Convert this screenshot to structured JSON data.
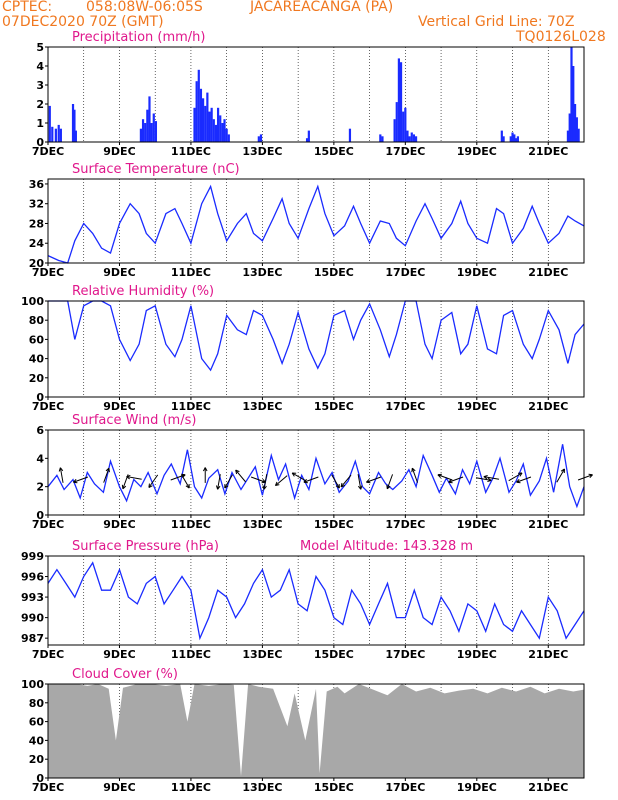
{
  "header": {
    "org": "CPTEC:",
    "coords": "058:08W-06:05S",
    "station": "JACAREACANGA (PA)",
    "run": "07DEC2020 70Z (GMT)",
    "grid": "Vertical Grid Line: 70Z",
    "code": "TQ0126L028"
  },
  "colors": {
    "header": "#f07820",
    "title": "#e0188c",
    "series": "#1a2bff",
    "cloud_fill": "#a8a8a8"
  },
  "chart_data": [
    {
      "type": "bar",
      "title": "Precipitation (mm/h)",
      "xticks": [
        "7DEC",
        "9DEC",
        "11DEC",
        "13DEC",
        "15DEC",
        "17DEC",
        "19DEC",
        "21DEC"
      ],
      "xrange": [
        0,
        15
      ],
      "ylim": [
        0,
        5
      ],
      "yticks": [
        0,
        1,
        2,
        3,
        4,
        5
      ],
      "x": [
        0.05,
        0.12,
        0.22,
        0.3,
        0.36,
        0.7,
        0.74,
        0.78,
        2.6,
        2.66,
        2.72,
        2.78,
        2.84,
        2.9,
        2.96,
        3.02,
        4.1,
        4.16,
        4.22,
        4.28,
        4.34,
        4.4,
        4.46,
        4.52,
        4.58,
        4.64,
        4.7,
        4.76,
        4.82,
        4.88,
        4.94,
        5.0,
        5.06,
        5.9,
        5.96,
        7.25,
        7.3,
        8.45,
        9.3,
        9.36,
        9.7,
        9.76,
        9.82,
        9.88,
        9.94,
        10.0,
        10.06,
        10.12,
        10.18,
        10.24,
        10.3,
        12.7,
        12.75,
        12.95,
        13.0,
        13.05,
        13.1,
        13.15,
        14.55,
        14.6,
        14.65,
        14.7,
        14.75,
        14.8,
        14.85
      ],
      "values": [
        1.9,
        0.8,
        0.7,
        0.9,
        0.7,
        2.0,
        1.7,
        0.6,
        0.7,
        1.2,
        1.0,
        1.7,
        2.4,
        1.0,
        1.5,
        1.1,
        1.8,
        3.2,
        3.8,
        2.8,
        2.3,
        1.9,
        2.6,
        1.6,
        1.8,
        1.2,
        0.9,
        1.8,
        1.4,
        1.0,
        1.2,
        0.7,
        0.4,
        0.3,
        0.4,
        0.2,
        0.6,
        0.7,
        0.4,
        0.3,
        1.2,
        2.1,
        4.4,
        4.2,
        1.6,
        1.8,
        0.6,
        0.3,
        0.5,
        0.4,
        0.3,
        0.6,
        0.3,
        0.3,
        0.5,
        0.4,
        0.2,
        0.3,
        0.6,
        1.5,
        5.0,
        4.0,
        2.0,
        1.3,
        0.7
      ]
    },
    {
      "type": "line",
      "title": "Surface Temperature (nC)",
      "xticks": [
        "7DEC",
        "9DEC",
        "11DEC",
        "13DEC",
        "15DEC",
        "17DEC",
        "19DEC",
        "21DEC"
      ],
      "xrange": [
        0,
        15
      ],
      "ylim": [
        20,
        37
      ],
      "yticks": [
        20,
        24,
        28,
        32,
        36
      ],
      "x": [
        0,
        0.3,
        0.55,
        0.75,
        1.0,
        1.25,
        1.5,
        1.75,
        2.0,
        2.3,
        2.55,
        2.75,
        3.0,
        3.3,
        3.55,
        3.75,
        4.0,
        4.3,
        4.55,
        4.75,
        5.0,
        5.3,
        5.55,
        5.75,
        6.0,
        6.3,
        6.55,
        6.75,
        7.0,
        7.3,
        7.55,
        7.75,
        8.0,
        8.3,
        8.55,
        8.75,
        9.0,
        9.3,
        9.55,
        9.75,
        10.0,
        10.3,
        10.55,
        10.75,
        11.0,
        11.3,
        11.55,
        11.75,
        12.0,
        12.3,
        12.55,
        12.75,
        13.0,
        13.3,
        13.55,
        13.75,
        14.0,
        14.3,
        14.55,
        14.75,
        15.0
      ],
      "values": [
        21.5,
        20.5,
        20.0,
        24.5,
        28.0,
        26.0,
        23.0,
        22.0,
        28.0,
        32.0,
        30.0,
        26.0,
        24.0,
        30.0,
        31.0,
        28.0,
        24.0,
        32.0,
        35.5,
        30.0,
        24.5,
        28.0,
        30.0,
        26.0,
        24.5,
        29.0,
        33.0,
        28.0,
        25.0,
        31.0,
        35.5,
        30.0,
        25.5,
        27.5,
        31.5,
        28.0,
        24.0,
        28.5,
        28.0,
        25.0,
        23.5,
        28.5,
        32.0,
        29.0,
        25.0,
        28.0,
        32.5,
        28.0,
        25.0,
        24.0,
        31.0,
        30.0,
        24.0,
        27.0,
        31.5,
        28.0,
        24.0,
        26.0,
        29.5,
        28.5,
        27.5
      ]
    },
    {
      "type": "line",
      "title": "Relative Humidity (%)",
      "xticks": [
        "7DEC",
        "9DEC",
        "11DEC",
        "13DEC",
        "15DEC",
        "17DEC",
        "19DEC",
        "21DEC"
      ],
      "xrange": [
        0,
        15
      ],
      "ylim": [
        0,
        100
      ],
      "yticks": [
        0,
        20,
        40,
        60,
        80,
        100
      ],
      "x": [
        0,
        0.3,
        0.55,
        0.75,
        1.0,
        1.25,
        1.5,
        1.75,
        2.0,
        2.3,
        2.55,
        2.75,
        3.0,
        3.3,
        3.55,
        3.75,
        4.0,
        4.3,
        4.55,
        4.75,
        5.0,
        5.3,
        5.55,
        5.75,
        6.0,
        6.3,
        6.55,
        6.75,
        7.0,
        7.3,
        7.55,
        7.75,
        8.0,
        8.3,
        8.55,
        8.75,
        9.0,
        9.3,
        9.55,
        9.75,
        10.0,
        10.3,
        10.55,
        10.75,
        11.0,
        11.3,
        11.55,
        11.75,
        12.0,
        12.3,
        12.55,
        12.75,
        13.0,
        13.3,
        13.55,
        13.75,
        14.0,
        14.3,
        14.55,
        14.75,
        15.0
      ],
      "values": [
        100,
        100,
        100,
        60,
        95,
        100,
        100,
        95,
        60,
        38,
        55,
        90,
        95,
        55,
        42,
        60,
        95,
        40,
        28,
        45,
        85,
        70,
        65,
        90,
        85,
        60,
        35,
        55,
        88,
        50,
        30,
        45,
        85,
        90,
        60,
        80,
        97,
        70,
        42,
        65,
        100,
        100,
        55,
        40,
        80,
        88,
        45,
        55,
        95,
        50,
        45,
        85,
        90,
        55,
        40,
        60,
        90,
        70,
        35,
        65,
        76
      ]
    },
    {
      "type": "line",
      "title": "Surface Wind (m/s)",
      "xticks": [
        "7DEC",
        "9DEC",
        "11DEC",
        "13DEC",
        "15DEC",
        "17DEC",
        "19DEC",
        "21DEC"
      ],
      "xrange": [
        0,
        15
      ],
      "ylim": [
        0,
        6
      ],
      "yticks": [
        0,
        2,
        4,
        6
      ],
      "x": [
        0,
        0.25,
        0.45,
        0.7,
        0.9,
        1.1,
        1.3,
        1.55,
        1.75,
        2.0,
        2.2,
        2.4,
        2.6,
        2.8,
        3.05,
        3.25,
        3.45,
        3.7,
        3.9,
        4.1,
        4.3,
        4.5,
        4.75,
        4.95,
        5.15,
        5.4,
        5.6,
        5.8,
        6.0,
        6.25,
        6.45,
        6.65,
        6.9,
        7.1,
        7.3,
        7.5,
        7.75,
        7.95,
        8.15,
        8.4,
        8.6,
        8.8,
        9.0,
        9.25,
        9.45,
        9.65,
        9.9,
        10.1,
        10.3,
        10.5,
        10.75,
        10.95,
        11.15,
        11.4,
        11.6,
        11.8,
        12.0,
        12.25,
        12.45,
        12.65,
        12.9,
        13.1,
        13.3,
        13.5,
        13.75,
        13.95,
        14.15,
        14.4,
        14.6,
        14.8,
        15.0
      ],
      "values": [
        2.0,
        2.8,
        1.8,
        2.5,
        1.2,
        3.0,
        2.2,
        1.6,
        3.8,
        2.0,
        1.0,
        2.5,
        2.0,
        3.0,
        1.5,
        2.8,
        3.6,
        2.2,
        4.6,
        2.0,
        1.2,
        2.6,
        3.2,
        1.5,
        3.0,
        1.8,
        2.6,
        3.4,
        1.4,
        4.2,
        2.5,
        3.6,
        1.2,
        2.8,
        1.8,
        4.0,
        2.2,
        3.0,
        1.6,
        2.4,
        3.8,
        2.0,
        1.5,
        3.0,
        2.2,
        1.8,
        2.4,
        3.2,
        2.0,
        4.2,
        2.8,
        1.6,
        2.6,
        1.5,
        3.2,
        2.2,
        3.8,
        1.6,
        2.6,
        4.0,
        1.6,
        2.4,
        3.6,
        1.4,
        2.4,
        4.0,
        1.6,
        5.0,
        2.0,
        0.6,
        2.0
      ],
      "arrows": [
        {
          "x": 0.4,
          "dir": 100
        },
        {
          "x": 1.0,
          "dir": 200
        },
        {
          "x": 1.6,
          "dir": 70
        },
        {
          "x": 2.2,
          "dir": 250
        },
        {
          "x": 2.5,
          "dir": 170
        },
        {
          "x": 3.0,
          "dir": 235
        },
        {
          "x": 3.55,
          "dir": 20
        },
        {
          "x": 3.8,
          "dir": 300
        },
        {
          "x": 4.4,
          "dir": 90
        },
        {
          "x": 4.8,
          "dir": 260
        },
        {
          "x": 5.1,
          "dir": 240
        },
        {
          "x": 5.45,
          "dir": 130
        },
        {
          "x": 5.8,
          "dir": 340
        },
        {
          "x": 6.1,
          "dir": 260
        },
        {
          "x": 6.6,
          "dir": 220
        },
        {
          "x": 7.1,
          "dir": 150
        },
        {
          "x": 7.45,
          "dir": 200
        },
        {
          "x": 8.0,
          "dir": 300
        },
        {
          "x": 8.4,
          "dir": 230
        },
        {
          "x": 8.7,
          "dir": 280
        },
        {
          "x": 9.2,
          "dir": 200
        },
        {
          "x": 9.6,
          "dir": 250
        },
        {
          "x": 10.3,
          "dir": 110
        },
        {
          "x": 11.2,
          "dir": 160
        },
        {
          "x": 11.5,
          "dir": 200
        },
        {
          "x": 12.1,
          "dir": 350
        },
        {
          "x": 12.5,
          "dir": 170
        },
        {
          "x": 13.0,
          "dir": 30
        },
        {
          "x": 13.4,
          "dir": 200
        },
        {
          "x": 14.3,
          "dir": 60
        },
        {
          "x": 14.95,
          "dir": 20
        }
      ]
    },
    {
      "type": "line",
      "title": "Surface Pressure (hPa)",
      "annotation": "Model Altitude: 143.328 m",
      "xticks": [
        "7DEC",
        "9DEC",
        "11DEC",
        "13DEC",
        "15DEC",
        "17DEC",
        "19DEC",
        "21DEC"
      ],
      "xrange": [
        0,
        15
      ],
      "ylim": [
        986,
        999
      ],
      "yticks": [
        987,
        990,
        993,
        996,
        999
      ],
      "x": [
        0,
        0.25,
        0.5,
        0.75,
        1.0,
        1.25,
        1.5,
        1.75,
        2.0,
        2.25,
        2.5,
        2.75,
        3.0,
        3.25,
        3.5,
        3.75,
        4.0,
        4.25,
        4.5,
        4.75,
        5.0,
        5.25,
        5.5,
        5.75,
        6.0,
        6.25,
        6.5,
        6.75,
        7.0,
        7.25,
        7.5,
        7.75,
        8.0,
        8.25,
        8.5,
        8.75,
        9.0,
        9.25,
        9.5,
        9.75,
        10.0,
        10.25,
        10.5,
        10.75,
        11.0,
        11.25,
        11.5,
        11.75,
        12.0,
        12.25,
        12.5,
        12.75,
        13.0,
        13.25,
        13.5,
        13.75,
        14.0,
        14.25,
        14.5,
        14.75,
        15.0
      ],
      "values": [
        995,
        997,
        995,
        993,
        996,
        998,
        994,
        994,
        997,
        993,
        992,
        995,
        996,
        992,
        994,
        996,
        994,
        987,
        990,
        994,
        993,
        990,
        992,
        995,
        997,
        993,
        994,
        997,
        992,
        991,
        996,
        994,
        990,
        989,
        994,
        992,
        989,
        992,
        995,
        990,
        990,
        994,
        990,
        989,
        993,
        991,
        988,
        992,
        991,
        988,
        992,
        989,
        988,
        991,
        989,
        987,
        993,
        991,
        987,
        989,
        991
      ]
    },
    {
      "type": "area",
      "title": "Cloud Cover (%)",
      "xticks": [
        "7DEC",
        "9DEC",
        "11DEC",
        "13DEC",
        "15DEC",
        "17DEC",
        "19DEC",
        "21DEC"
      ],
      "xrange": [
        0,
        15
      ],
      "ylim": [
        0,
        100
      ],
      "yticks": [
        0,
        20,
        40,
        60,
        80,
        100
      ],
      "x": [
        0,
        0.4,
        0.8,
        1.1,
        1.4,
        1.7,
        1.9,
        2.1,
        2.5,
        2.9,
        3.3,
        3.7,
        3.9,
        4.1,
        4.5,
        4.9,
        5.2,
        5.4,
        5.6,
        5.9,
        6.3,
        6.7,
        6.9,
        7.2,
        7.5,
        7.6,
        7.8,
        8.1,
        8.3,
        8.7,
        9.1,
        9.5,
        9.9,
        10.3,
        10.7,
        11.1,
        11.5,
        11.9,
        12.3,
        12.7,
        13.1,
        13.5,
        13.9,
        14.3,
        14.7,
        15.0
      ],
      "values": [
        100,
        100,
        100,
        98,
        100,
        95,
        40,
        96,
        100,
        100,
        98,
        100,
        60,
        100,
        98,
        100,
        99,
        2,
        100,
        97,
        95,
        55,
        90,
        40,
        95,
        5,
        92,
        97,
        90,
        100,
        94,
        88,
        100,
        92,
        96,
        90,
        93,
        95,
        90,
        96,
        92,
        97,
        90,
        95,
        92,
        94
      ]
    }
  ]
}
